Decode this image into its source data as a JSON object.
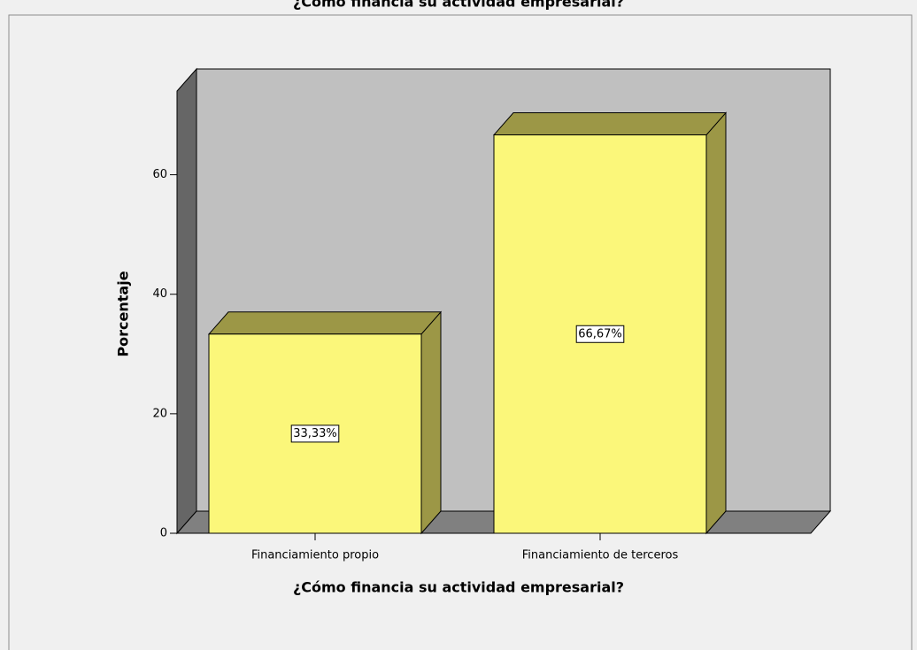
{
  "chart_data": {
    "type": "bar3d",
    "title": "¿Cómo financia su actividad empresarial?",
    "x_label": "¿Cómo financia su actividad empresarial?",
    "y_label": "Porcentaje",
    "categories": [
      "Financiamiento propio",
      "Financiamiento de terceros"
    ],
    "values": [
      33.33,
      66.67
    ],
    "value_labels": [
      "33,33%",
      "66,67%"
    ],
    "color": "#fbf77a",
    "ylim": [
      0,
      74
    ],
    "yticks": [
      0,
      20,
      40,
      60
    ]
  }
}
